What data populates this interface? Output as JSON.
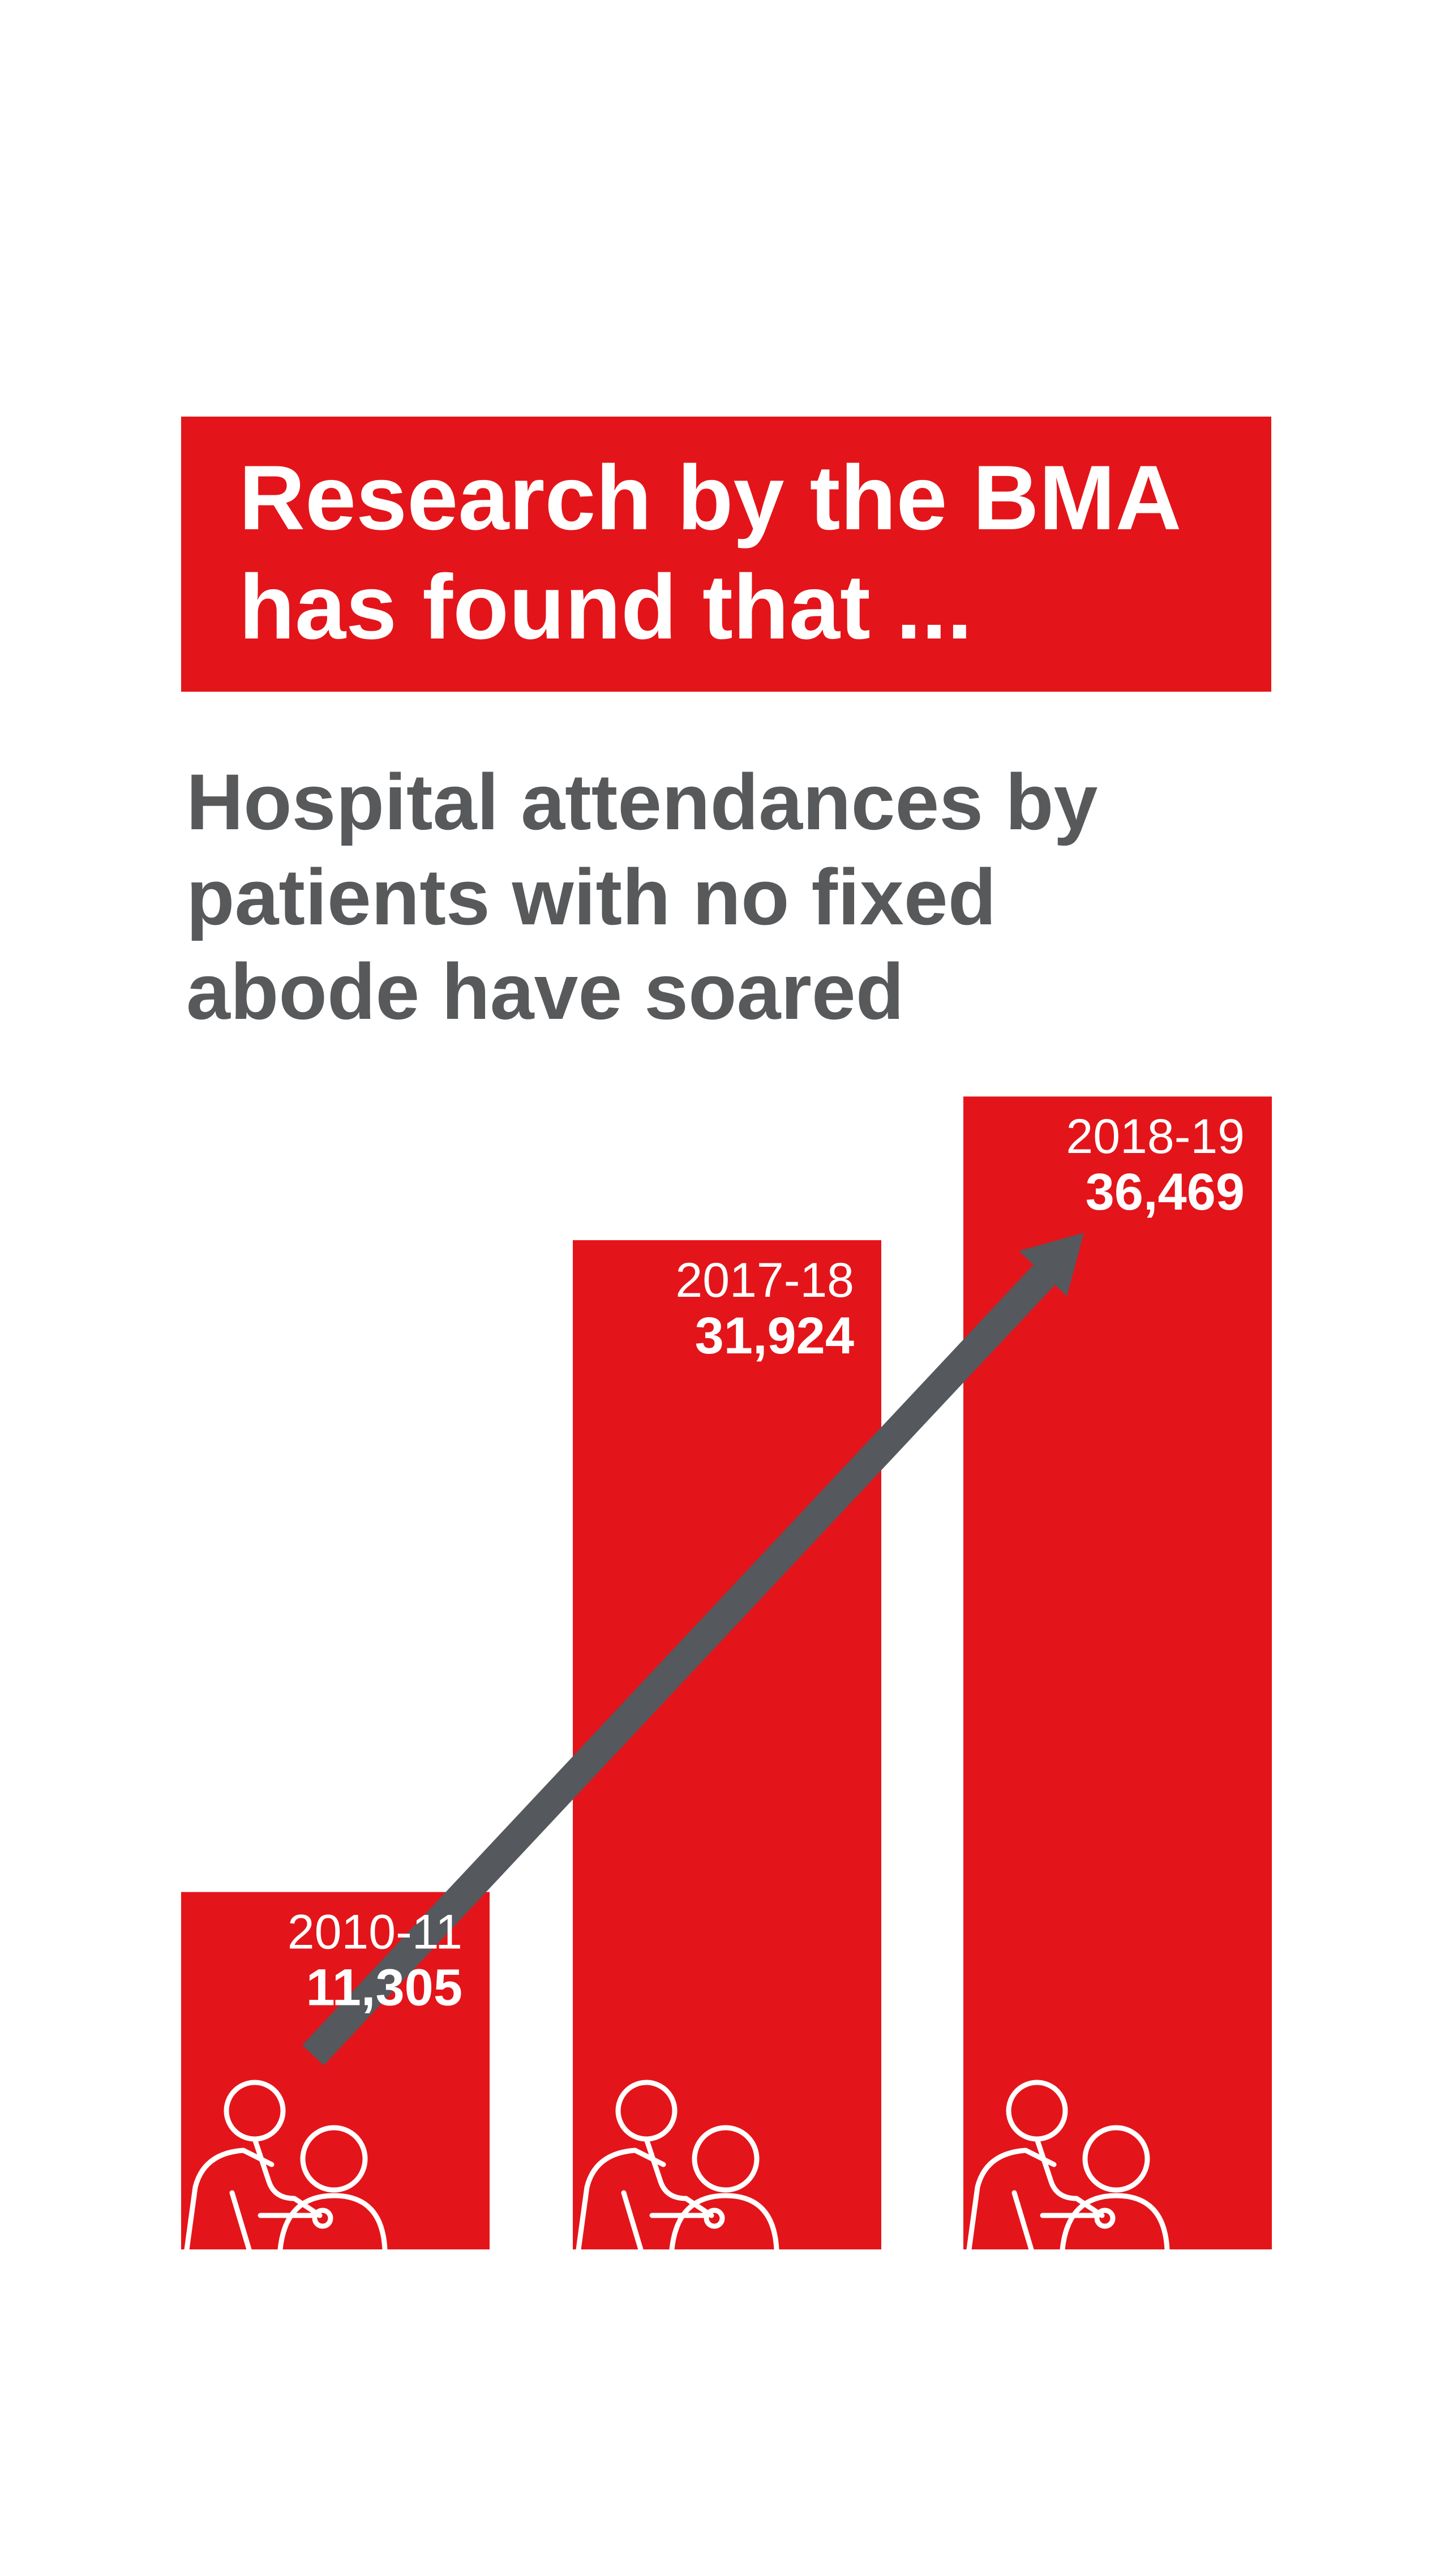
{
  "chart_data": {
    "type": "bar",
    "title": [
      "Research by the BMA",
      "has found that ..."
    ],
    "subtitle": [
      "Hospital attendances by",
      "patients with no fixed",
      "abode have soared"
    ],
    "categories": [
      "2010-11",
      "2017-18",
      "2018-19"
    ],
    "values": [
      11305,
      31924,
      36469
    ],
    "value_labels": [
      "11,305",
      "31,924",
      "36,469"
    ],
    "color": "#e3151a",
    "ylim": [
      0,
      40000
    ]
  }
}
